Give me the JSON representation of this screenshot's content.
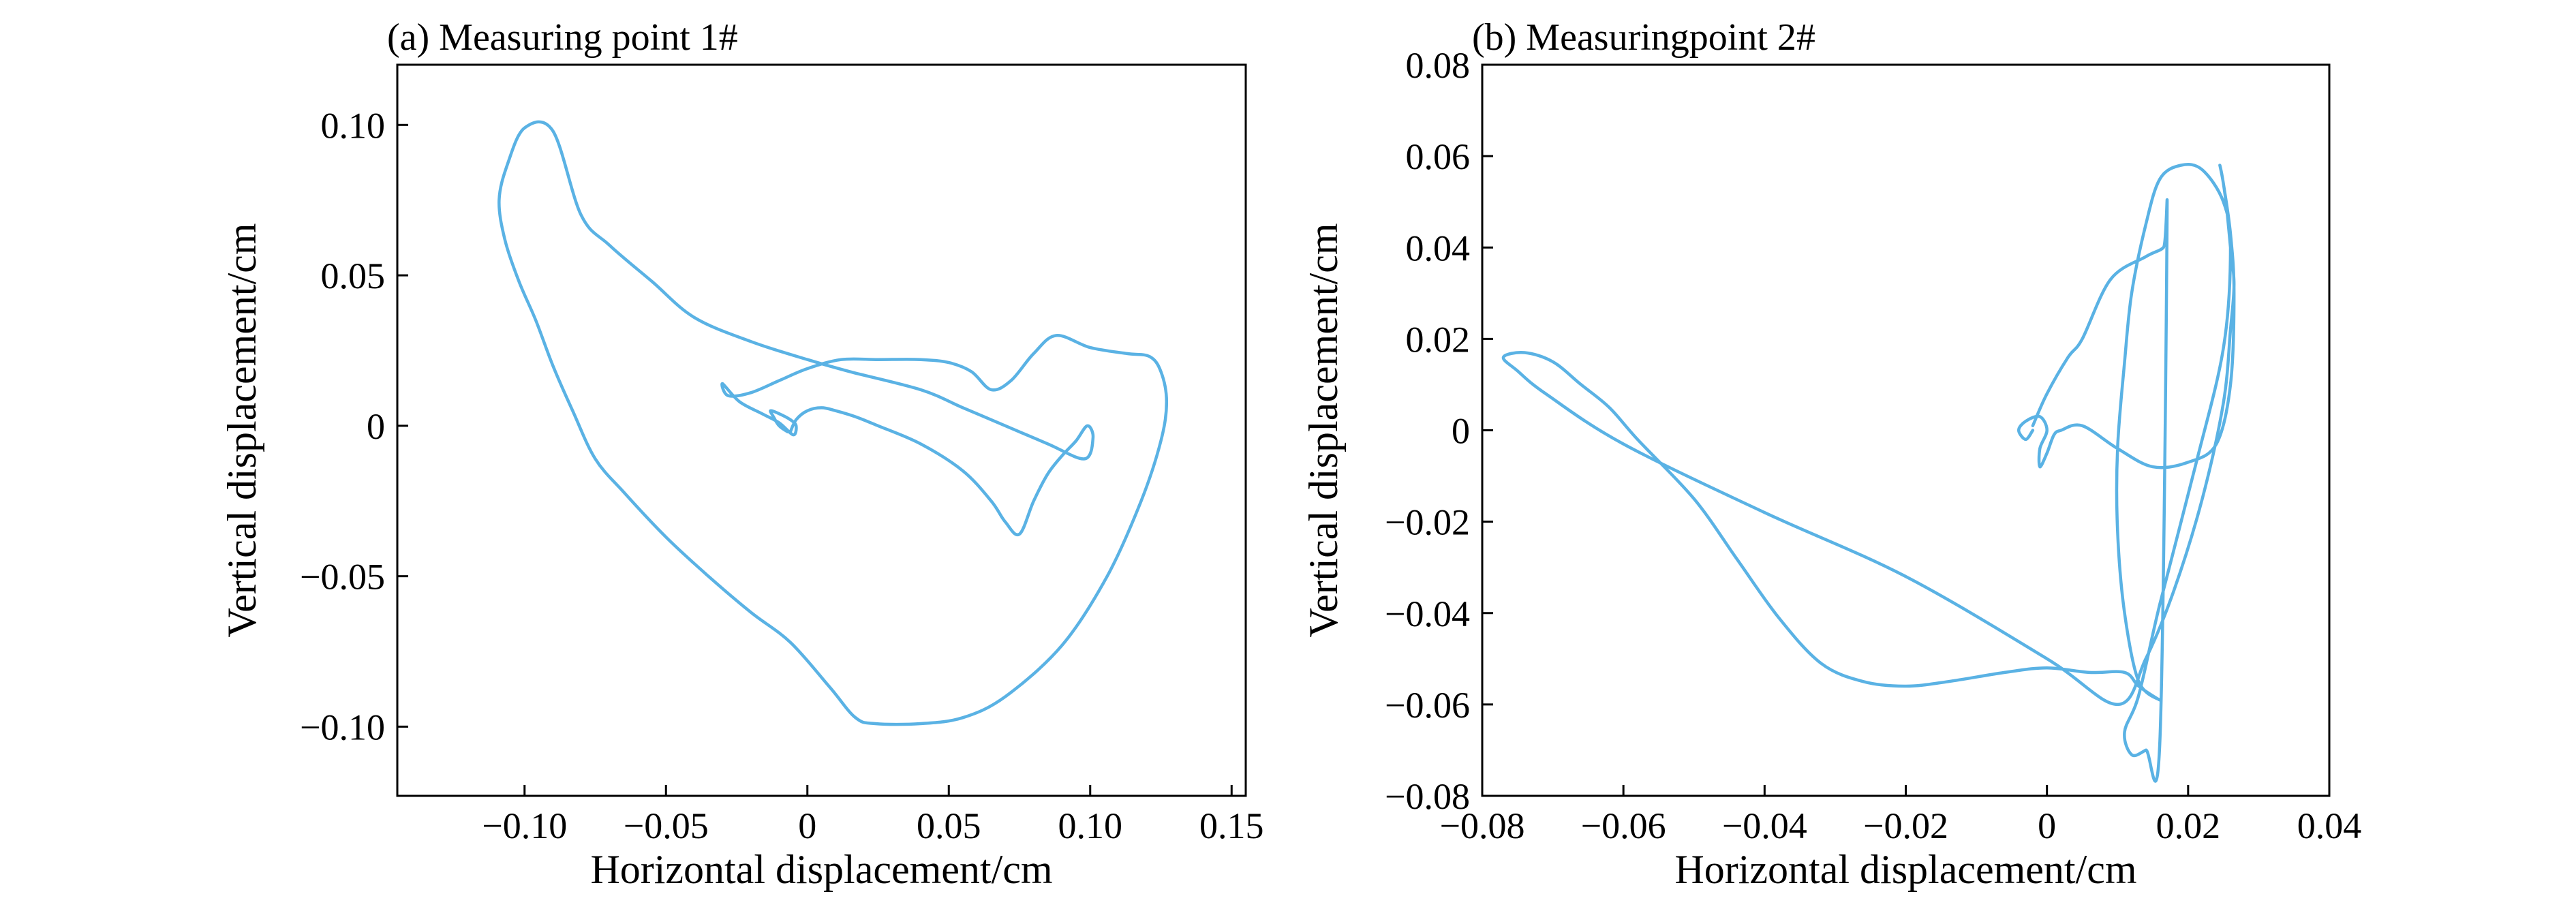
{
  "chart_data": [
    {
      "type": "line",
      "title": "(a) Measuring point 1#",
      "xlabel": "Horizontal displacement/cm",
      "ylabel": "Vertical displacement/cm",
      "xlim": [
        -0.145,
        0.155
      ],
      "ylim": [
        -0.123,
        0.12
      ],
      "xticks": [
        -0.1,
        -0.05,
        0,
        0.05,
        0.1,
        0.15
      ],
      "xtick_labels": [
        "−0.10",
        "−0.05",
        "0",
        "0.05",
        "0.10",
        "0.15"
      ],
      "yticks": [
        -0.1,
        -0.05,
        0,
        0.05,
        0.1
      ],
      "ytick_labels": [
        "−0.10",
        "−0.05",
        "0",
        "0.05",
        "0.10"
      ],
      "grid": false,
      "series": [
        {
          "color": "#5ab2e4",
          "x": [
            -0.007,
            -0.01,
            -0.012,
            -0.013,
            -0.01,
            -0.006,
            -0.004,
            -0.005,
            -0.01,
            -0.016,
            -0.024,
            -0.03,
            -0.028,
            -0.02,
            -0.01,
            0.0,
            0.012,
            0.025,
            0.04,
            0.05,
            0.058,
            0.065,
            0.072,
            0.08,
            0.088,
            0.1,
            0.113,
            0.121,
            0.125,
            0.127,
            0.125,
            0.118,
            0.106,
            0.09,
            0.07,
            0.055,
            0.04,
            0.024,
            0.017,
            0.008,
            -0.006,
            -0.02,
            -0.035,
            -0.05,
            -0.065,
            -0.075,
            -0.083,
            -0.09,
            -0.096,
            -0.102,
            -0.107,
            -0.109,
            -0.106,
            -0.1,
            -0.09,
            -0.08,
            -0.07,
            -0.055,
            -0.04,
            -0.02,
            0.0,
            0.015,
            0.04,
            0.055,
            0.07,
            0.085,
            0.098,
            0.101,
            0.099,
            0.095,
            0.09,
            0.085,
            0.08,
            0.075,
            0.07,
            0.065,
            0.055,
            0.04,
            0.025,
            0.017,
            0.01,
            0.005,
            0.0,
            -0.004,
            -0.006
          ],
          "y": [
            -0.002,
            0.0,
            0.003,
            0.005,
            0.004,
            0.002,
            0.0,
            -0.003,
            0.001,
            0.004,
            0.008,
            0.014,
            0.01,
            0.011,
            0.015,
            0.019,
            0.022,
            0.022,
            0.022,
            0.021,
            0.018,
            0.012,
            0.015,
            0.024,
            0.03,
            0.026,
            0.024,
            0.023,
            0.018,
            0.008,
            -0.005,
            -0.025,
            -0.05,
            -0.073,
            -0.09,
            -0.097,
            -0.099,
            -0.099,
            -0.097,
            -0.087,
            -0.072,
            -0.062,
            -0.05,
            -0.037,
            -0.022,
            -0.011,
            0.005,
            0.02,
            0.035,
            0.048,
            0.062,
            0.075,
            0.087,
            0.099,
            0.098,
            0.07,
            0.06,
            0.048,
            0.036,
            0.028,
            0.022,
            0.018,
            0.012,
            0.006,
            0.0,
            -0.006,
            -0.011,
            -0.004,
            0.0,
            -0.005,
            -0.01,
            -0.016,
            -0.025,
            -0.036,
            -0.032,
            -0.025,
            -0.015,
            -0.006,
            0.0,
            0.003,
            0.005,
            0.006,
            0.005,
            0.002,
            -0.002
          ]
        }
      ]
    },
    {
      "type": "line",
      "title": "(b) Measuringpoint 2#",
      "xlabel": "Horizontal displacement/cm",
      "ylabel": "Vertical displacement/cm",
      "xlim": [
        -0.08,
        0.04
      ],
      "ylim": [
        -0.08,
        0.08
      ],
      "xticks": [
        -0.08,
        -0.06,
        -0.04,
        -0.02,
        0,
        0.02,
        0.04
      ],
      "xtick_labels": [
        "−0.08",
        "−0.06",
        "−0.04",
        "−0.02",
        "0",
        "0.02",
        "0.04"
      ],
      "yticks": [
        -0.08,
        -0.06,
        -0.04,
        -0.02,
        0,
        0.02,
        0.04,
        0.06,
        0.08
      ],
      "ytick_labels": [
        "−0.08",
        "−0.06",
        "−0.04",
        "−0.02",
        "0",
        "0.02",
        "0.04",
        "0.06",
        "0.08"
      ],
      "grid": false,
      "series": [
        {
          "color": "#5ab2e4",
          "x": [
            -0.002,
            -0.003,
            -0.004,
            -0.003,
            -0.001,
            0.0,
            -0.001,
            -0.001,
            0.0,
            0.001,
            0.002,
            0.005,
            0.01,
            0.015,
            0.02,
            0.024,
            0.026,
            0.0265,
            0.026,
            0.025,
            0.0245,
            0.025,
            0.0255,
            0.026,
            0.0265,
            0.026,
            0.025,
            0.022,
            0.018,
            0.014,
            0.01,
            0.0,
            -0.02,
            -0.04,
            -0.06,
            -0.071,
            -0.075,
            -0.077,
            -0.074,
            -0.07,
            -0.066,
            -0.062,
            -0.058,
            -0.05,
            -0.044,
            -0.038,
            -0.032,
            -0.026,
            -0.02,
            -0.014,
            -0.006,
            0.0,
            0.006,
            0.011,
            0.013,
            0.016,
            0.013,
            0.011,
            0.01,
            0.01,
            0.011,
            0.012,
            0.014,
            0.016,
            0.019,
            0.022,
            0.025,
            0.026,
            0.025,
            0.021,
            0.016,
            0.013,
            0.011,
            0.012,
            0.014,
            0.016,
            0.017,
            0.0165,
            0.014,
            0.009,
            0.005,
            0.003,
            0.0,
            -0.002
          ],
          "y": [
            0.0,
            -0.002,
            0.0,
            0.002,
            0.003,
            0.0,
            -0.004,
            -0.008,
            -0.005,
            -0.001,
            0.0,
            0.001,
            -0.004,
            -0.008,
            -0.007,
            -0.003,
            0.01,
            0.03,
            0.043,
            0.054,
            0.058,
            0.054,
            0.048,
            0.04,
            0.032,
            0.022,
            0.006,
            -0.015,
            -0.035,
            -0.05,
            -0.06,
            -0.05,
            -0.032,
            -0.018,
            -0.003,
            0.008,
            0.013,
            0.016,
            0.017,
            0.015,
            0.01,
            0.005,
            -0.002,
            -0.015,
            -0.028,
            -0.041,
            -0.051,
            -0.055,
            -0.056,
            -0.055,
            -0.053,
            -0.052,
            -0.053,
            -0.053,
            -0.056,
            -0.059,
            -0.055,
            -0.04,
            -0.022,
            -0.004,
            0.015,
            0.03,
            0.045,
            0.055,
            0.058,
            0.057,
            0.05,
            0.04,
            0.018,
            -0.008,
            -0.038,
            -0.058,
            -0.066,
            -0.071,
            -0.07,
            -0.068,
            0.043,
            0.04,
            0.038,
            0.033,
            0.02,
            0.016,
            0.008,
            0.001
          ]
        }
      ]
    }
  ]
}
